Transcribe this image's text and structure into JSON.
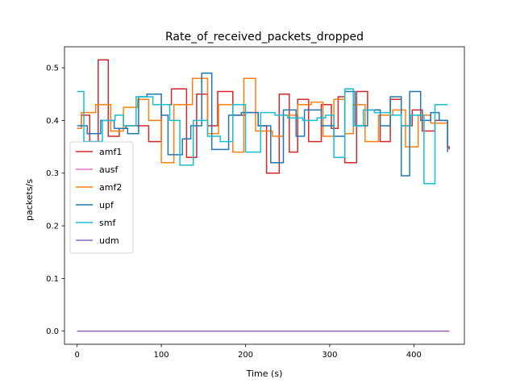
{
  "chart_data": {
    "type": "line",
    "title": "Rate_of_received_packets_dropped",
    "xlabel": "Time (s)",
    "ylabel": "packets/s",
    "xlim": [
      -15,
      460
    ],
    "ylim": [
      -0.025,
      0.54
    ],
    "xticks": [
      0,
      100,
      200,
      300,
      400
    ],
    "yticks": [
      0.0,
      0.1,
      0.2,
      0.3,
      0.4,
      0.5
    ],
    "ytick_labels": [
      "0.0",
      "0.1",
      "0.2",
      "0.3",
      "0.4",
      "0.5"
    ],
    "grid": false,
    "legend_position": "center-left",
    "step": true,
    "series": [
      {
        "name": "amf1",
        "color": "#d62728",
        "x": [
          0,
          5,
          15,
          25,
          37,
          50,
          58,
          70,
          85,
          100,
          112,
          130,
          142,
          155,
          167,
          185,
          200,
          215,
          225,
          240,
          252,
          262,
          275,
          290,
          302,
          310,
          318,
          332,
          345,
          360,
          372,
          385,
          398,
          410,
          425,
          440,
          442
        ],
        "y": [
          0.385,
          0.41,
          0.36,
          0.515,
          0.37,
          0.385,
          0.39,
          0.39,
          0.36,
          0.43,
          0.46,
          0.33,
          0.45,
          0.39,
          0.455,
          0.41,
          0.415,
          0.39,
          0.3,
          0.45,
          0.34,
          0.44,
          0.36,
          0.43,
          0.385,
          0.445,
          0.32,
          0.455,
          0.42,
          0.36,
          0.44,
          0.39,
          0.42,
          0.38,
          0.4,
          0.35,
          0.345
        ]
      },
      {
        "name": "ausf",
        "color": "#e377c2",
        "x": [
          0,
          442
        ],
        "y": [
          0.0,
          0.0
        ]
      },
      {
        "name": "amf2",
        "color": "#ff7f0e",
        "x": [
          0,
          5,
          22,
          40,
          55,
          72,
          85,
          100,
          115,
          137,
          155,
          168,
          185,
          198,
          212,
          232,
          245,
          262,
          278,
          292,
          305,
          318,
          328,
          342,
          358,
          375,
          390,
          405,
          420,
          440
        ],
        "y": [
          0.385,
          0.415,
          0.43,
          0.38,
          0.425,
          0.44,
          0.4,
          0.32,
          0.43,
          0.48,
          0.375,
          0.43,
          0.34,
          0.48,
          0.38,
          0.37,
          0.41,
          0.43,
          0.435,
          0.37,
          0.44,
          0.375,
          0.43,
          0.36,
          0.41,
          0.42,
          0.35,
          0.41,
          0.395,
          0.395
        ]
      },
      {
        "name": "upf",
        "color": "#1f77b4",
        "x": [
          0,
          12,
          28,
          44,
          60,
          73,
          83,
          100,
          108,
          125,
          135,
          148,
          160,
          180,
          195,
          215,
          230,
          245,
          260,
          270,
          290,
          305,
          318,
          330,
          345,
          360,
          372,
          385,
          395,
          408,
          420,
          430,
          440
        ],
        "y": [
          0.39,
          0.375,
          0.4,
          0.385,
          0.375,
          0.445,
          0.45,
          0.41,
          0.335,
          0.365,
          0.39,
          0.49,
          0.345,
          0.41,
          0.415,
          0.39,
          0.32,
          0.42,
          0.37,
          0.42,
          0.39,
          0.37,
          0.455,
          0.39,
          0.42,
          0.39,
          0.445,
          0.295,
          0.455,
          0.4,
          0.415,
          0.4,
          0.34
        ]
      },
      {
        "name": "smf",
        "color": "#17becf",
        "x": [
          0,
          8,
          30,
          45,
          55,
          70,
          90,
          110,
          122,
          138,
          155,
          170,
          185,
          200,
          218,
          235,
          250,
          268,
          285,
          295,
          305,
          318,
          328,
          340,
          353,
          372,
          385,
          396,
          412,
          425,
          432,
          440
        ],
        "y": [
          0.455,
          0.36,
          0.4,
          0.41,
          0.39,
          0.445,
          0.43,
          0.4,
          0.315,
          0.4,
          0.37,
          0.36,
          0.43,
          0.34,
          0.415,
          0.41,
          0.405,
          0.4,
          0.405,
          0.41,
          0.33,
          0.46,
          0.39,
          0.42,
          0.415,
          0.41,
          0.39,
          0.41,
          0.28,
          0.43,
          0.43,
          0.43
        ]
      },
      {
        "name": "udm",
        "color": "#9467bd",
        "x": [
          0,
          442
        ],
        "y": [
          0.0,
          0.0
        ]
      }
    ]
  }
}
